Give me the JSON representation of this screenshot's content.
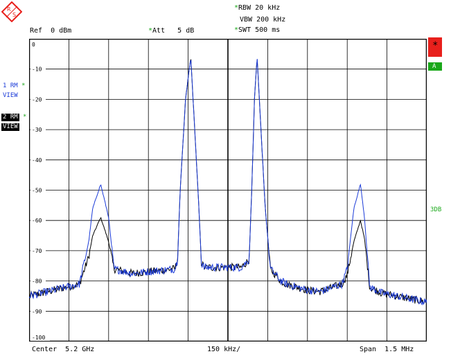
{
  "header": {
    "rbw": "RBW 20 kHz",
    "vbw": "VBW 200 kHz",
    "swt": "SWT 500 ms",
    "ref": "Ref  0 dBm",
    "att": "Att   5 dB"
  },
  "traces": {
    "t1_line1": "1 RM",
    "t1_line2": "VIEW",
    "t2_line1": "2 RM",
    "t2_line2": "VIEW"
  },
  "right_panel": {
    "star_label": "*",
    "a_label": "A",
    "db3_label": "3DB"
  },
  "footer": {
    "center": "Center  5.2 GHz",
    "per_div": "150 kHz/",
    "span": "Span  1.5 MHz"
  },
  "colors": {
    "trace1": "#1a3ad8",
    "trace2": "#000000",
    "grid": "#000000",
    "marker_red": "#e8201c",
    "status_green": "#1aa81a"
  },
  "chart_data": {
    "type": "line",
    "xlabel": "",
    "ylabel": "",
    "x_range_mhz": [
      -0.75,
      0.75
    ],
    "ylim": [
      -100,
      0
    ],
    "y_ticks": [
      "0",
      "-10",
      "-20",
      "-30",
      "-40",
      "-50",
      "-60",
      "-70",
      "-80",
      "-90",
      "-100"
    ],
    "grid": true,
    "series": [
      {
        "name": "1 RM",
        "color": "#1a3ad8",
        "x": [
          -0.75,
          -0.56,
          -0.525,
          -0.51,
          -0.48,
          -0.45,
          -0.43,
          -0.36,
          -0.2,
          -0.19,
          -0.18,
          -0.16,
          -0.14,
          -0.11,
          -0.1,
          -0.09,
          -0.05,
          0.05,
          0.08,
          0.09,
          0.1,
          0.11,
          0.14,
          0.16,
          0.2,
          0.22,
          0.3,
          0.35,
          0.43,
          0.45,
          0.475,
          0.5,
          0.515,
          0.535,
          0.58,
          0.75
        ],
        "y": [
          -85,
          -81,
          -67,
          -56,
          -48,
          -59,
          -76,
          -77.5,
          -76,
          -73,
          -50,
          -20,
          -6,
          -55,
          -74,
          -75.5,
          -75.5,
          -75.5,
          -73,
          -50,
          -20,
          -6,
          -55,
          -76,
          -80,
          -81,
          -83,
          -83.5,
          -81,
          -76,
          -56,
          -48,
          -59,
          -82,
          -84,
          -87
        ]
      },
      {
        "name": "2 RM",
        "color": "#000000",
        "x": [
          -0.75,
          -0.56,
          -0.525,
          -0.51,
          -0.48,
          -0.45,
          -0.43,
          -0.36,
          -0.2,
          -0.19,
          -0.18,
          -0.16,
          -0.14,
          -0.11,
          -0.1,
          -0.09,
          -0.05,
          0.05,
          0.08,
          0.09,
          0.1,
          0.11,
          0.14,
          0.16,
          0.2,
          0.22,
          0.3,
          0.35,
          0.43,
          0.45,
          0.475,
          0.5,
          0.515,
          0.535,
          0.58,
          0.75
        ],
        "y": [
          -85,
          -81,
          -72,
          -65,
          -59,
          -67,
          -76,
          -77.5,
          -76,
          -73,
          -50,
          -20,
          -6,
          -55,
          -74,
          -75.5,
          -75.5,
          -75.5,
          -73,
          -50,
          -20,
          -6,
          -55,
          -76,
          -80,
          -81,
          -83,
          -83.5,
          -81,
          -78,
          -67,
          -60,
          -66,
          -82,
          -84,
          -87
        ]
      }
    ]
  }
}
